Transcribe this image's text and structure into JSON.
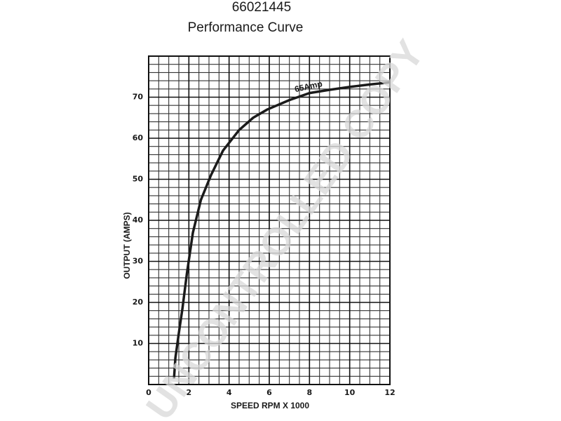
{
  "chart_data": {
    "type": "line",
    "title": "66021445",
    "subtitle": "Performance Curve",
    "x_label": "SPEED RPM X 1000",
    "y_label": "OUTPUT (AMPS)",
    "annotation": "65Amp",
    "watermark": "UNCONTROLLED COPY",
    "x": [
      1.26,
      1.33,
      1.5,
      1.68,
      1.9,
      2.2,
      2.6,
      3.1,
      3.7,
      4.5,
      5.2,
      5.9,
      7.0,
      8.0,
      9.0,
      10.0,
      11.0,
      12.0
    ],
    "series": [
      {
        "color": "#1a1a1a",
        "values": [
          1.4,
          6.5,
          12.5,
          18.5,
          27,
          37,
          45,
          51,
          57,
          62,
          65,
          67,
          69.3,
          71,
          71.8,
          72.5,
          73.1,
          73.6
        ]
      }
    ],
    "xlim": [
      0,
      12
    ],
    "xticks": [
      0,
      2,
      4,
      6,
      8,
      10,
      12
    ],
    "ylim": [
      0,
      80
    ],
    "yticks": [
      10,
      20,
      30,
      40,
      50,
      60,
      70
    ],
    "grid": true
  }
}
